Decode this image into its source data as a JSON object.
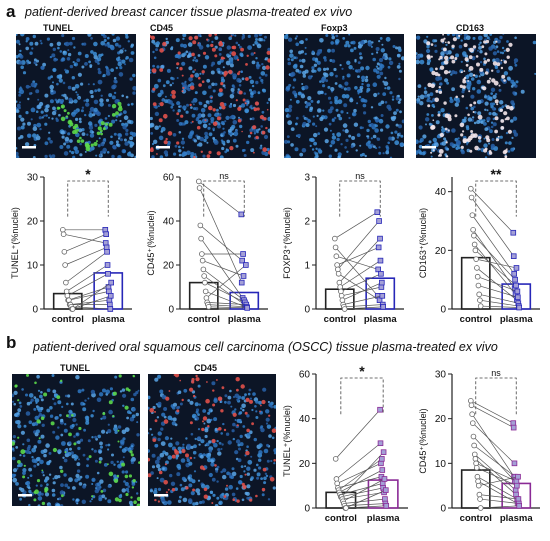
{
  "panel_a": {
    "letter": "a",
    "title": "patient-derived breast cancer tissue plasma-treated ex vivo",
    "image_labels": [
      "TUNEL",
      "CD45",
      "Foxp3",
      "CD163"
    ]
  },
  "panel_b": {
    "letter": "b",
    "title": "patient-derived oral squamous cell carcinoma (OSCC) tissue plasma-treated ex vivo",
    "image_labels": [
      "TUNEL",
      "CD45"
    ]
  },
  "colors": {
    "dapi_blue": "#3d8fd8",
    "tunel_green": "#5bd84a",
    "cd_red": "#e0504a",
    "plasma_blue": "#2727b8",
    "plasma_purple": "#8a2a96",
    "marker_fill": "#a4a0d6"
  },
  "chart_data": [
    {
      "id": "a_tunel",
      "type": "bar",
      "ylabel": "TUNEL⁺(%nuclei)",
      "ylim": [
        0,
        30
      ],
      "yticks": [
        "0",
        "10",
        "20",
        "30"
      ],
      "ytick_values": [
        0,
        10,
        20,
        30
      ],
      "categories": [
        "control",
        "plasma"
      ],
      "means": [
        3.5,
        8.2
      ],
      "significance": "*",
      "pairs": [
        [
          18,
          18
        ],
        [
          17,
          15
        ],
        [
          13,
          17
        ],
        [
          10,
          14
        ],
        [
          6,
          13
        ],
        [
          4,
          10
        ],
        [
          3,
          8
        ],
        [
          2,
          5
        ],
        [
          2,
          4
        ],
        [
          1,
          2
        ],
        [
          1,
          1
        ],
        [
          0.5,
          0
        ],
        [
          0,
          3
        ],
        [
          0,
          6
        ]
      ],
      "plasma_color": "#2727b8"
    },
    {
      "id": "a_cd45",
      "type": "bar",
      "ylabel": "CD45⁺(%nuclei)",
      "ylim": [
        0,
        60
      ],
      "yticks": [
        "0",
        "20",
        "40",
        "60"
      ],
      "ytick_values": [
        0,
        20,
        40,
        60
      ],
      "categories": [
        "control",
        "plasma"
      ],
      "means": [
        12,
        7.5
      ],
      "significance": "ns",
      "pairs": [
        [
          58,
          43
        ],
        [
          55,
          12
        ],
        [
          38,
          22
        ],
        [
          32,
          5
        ],
        [
          25,
          25
        ],
        [
          22,
          15
        ],
        [
          18,
          4
        ],
        [
          15,
          2
        ],
        [
          12,
          3
        ],
        [
          8,
          1
        ],
        [
          5,
          20
        ],
        [
          3,
          2
        ],
        [
          2,
          1
        ],
        [
          1,
          0.5
        ]
      ],
      "plasma_color": "#2727b8"
    },
    {
      "id": "a_foxp3",
      "type": "bar",
      "ylabel": "FOXP3⁺(%nuclei)",
      "ylim": [
        0,
        3
      ],
      "yticks": [
        "0",
        "1",
        "2",
        "3"
      ],
      "ytick_values": [
        0,
        1,
        2,
        3
      ],
      "categories": [
        "control",
        "plasma"
      ],
      "means": [
        0.45,
        0.7
      ],
      "significance": "ns",
      "pairs": [
        [
          1.6,
          2.2
        ],
        [
          1.4,
          0.3
        ],
        [
          1.2,
          0.9
        ],
        [
          1.0,
          1.4
        ],
        [
          0.9,
          2.0
        ],
        [
          0.8,
          0.2
        ],
        [
          0.6,
          1.6
        ],
        [
          0.5,
          1.1
        ],
        [
          0.4,
          0.8
        ],
        [
          0.3,
          0.5
        ],
        [
          0.2,
          0.6
        ],
        [
          0.1,
          0.3
        ],
        [
          0.05,
          0.1
        ],
        [
          0.0,
          0.05
        ]
      ],
      "plasma_color": "#2727b8"
    },
    {
      "id": "a_cd163",
      "type": "bar",
      "ylabel": "CD163⁺(%nuclei)",
      "ylim": [
        0,
        45
      ],
      "yticks": [
        "0",
        "20",
        "40"
      ],
      "ytick_values": [
        0,
        20,
        40
      ],
      "categories": [
        "control",
        "plasma"
      ],
      "means": [
        17.5,
        8.5
      ],
      "significance": "**",
      "pairs": [
        [
          41,
          26
        ],
        [
          38,
          18
        ],
        [
          32,
          12
        ],
        [
          27,
          7
        ],
        [
          25,
          10
        ],
        [
          22,
          5
        ],
        [
          20,
          8
        ],
        [
          17,
          14
        ],
        [
          14,
          3
        ],
        [
          11,
          6
        ],
        [
          8,
          4
        ],
        [
          5,
          2
        ],
        [
          3,
          1
        ],
        [
          1,
          0.5
        ]
      ],
      "plasma_color": "#2727b8"
    },
    {
      "id": "b_tunel",
      "type": "bar",
      "ylabel": "TUNEL⁺(%nuclei)",
      "ylim": [
        0,
        60
      ],
      "yticks": [
        "0",
        "20",
        "40",
        "60"
      ],
      "ytick_values": [
        0,
        20,
        40,
        60
      ],
      "categories": [
        "control",
        "plasma"
      ],
      "means": [
        7,
        12.5
      ],
      "significance": "*",
      "pairs": [
        [
          22,
          44
        ],
        [
          13,
          29
        ],
        [
          11,
          20
        ],
        [
          9,
          14
        ],
        [
          8,
          22
        ],
        [
          7,
          17
        ],
        [
          6,
          11
        ],
        [
          5,
          9
        ],
        [
          5,
          25
        ],
        [
          4,
          7
        ],
        [
          3,
          13
        ],
        [
          2,
          4
        ],
        [
          1,
          2
        ],
        [
          0,
          8
        ],
        [
          0,
          1
        ]
      ],
      "plasma_color": "#8a2a96"
    },
    {
      "id": "b_cd45",
      "type": "bar",
      "ylabel": "CD45⁺(%nuclei)",
      "ylim": [
        0,
        30
      ],
      "yticks": [
        "0",
        "10",
        "20",
        "30"
      ],
      "ytick_values": [
        0,
        10,
        20,
        30
      ],
      "categories": [
        "control",
        "plasma"
      ],
      "means": [
        8.5,
        5.5
      ],
      "significance": "ns",
      "pairs": [
        [
          24,
          19
        ],
        [
          23,
          18
        ],
        [
          21,
          7
        ],
        [
          19,
          10
        ],
        [
          16,
          6
        ],
        [
          14,
          7
        ],
        [
          12,
          4
        ],
        [
          11,
          3
        ],
        [
          10,
          6
        ],
        [
          9,
          5
        ],
        [
          7,
          2
        ],
        [
          6,
          1
        ],
        [
          5,
          7
        ],
        [
          3,
          2
        ],
        [
          2,
          1
        ],
        [
          0,
          0.5
        ]
      ],
      "plasma_color": "#8a2a96"
    }
  ]
}
